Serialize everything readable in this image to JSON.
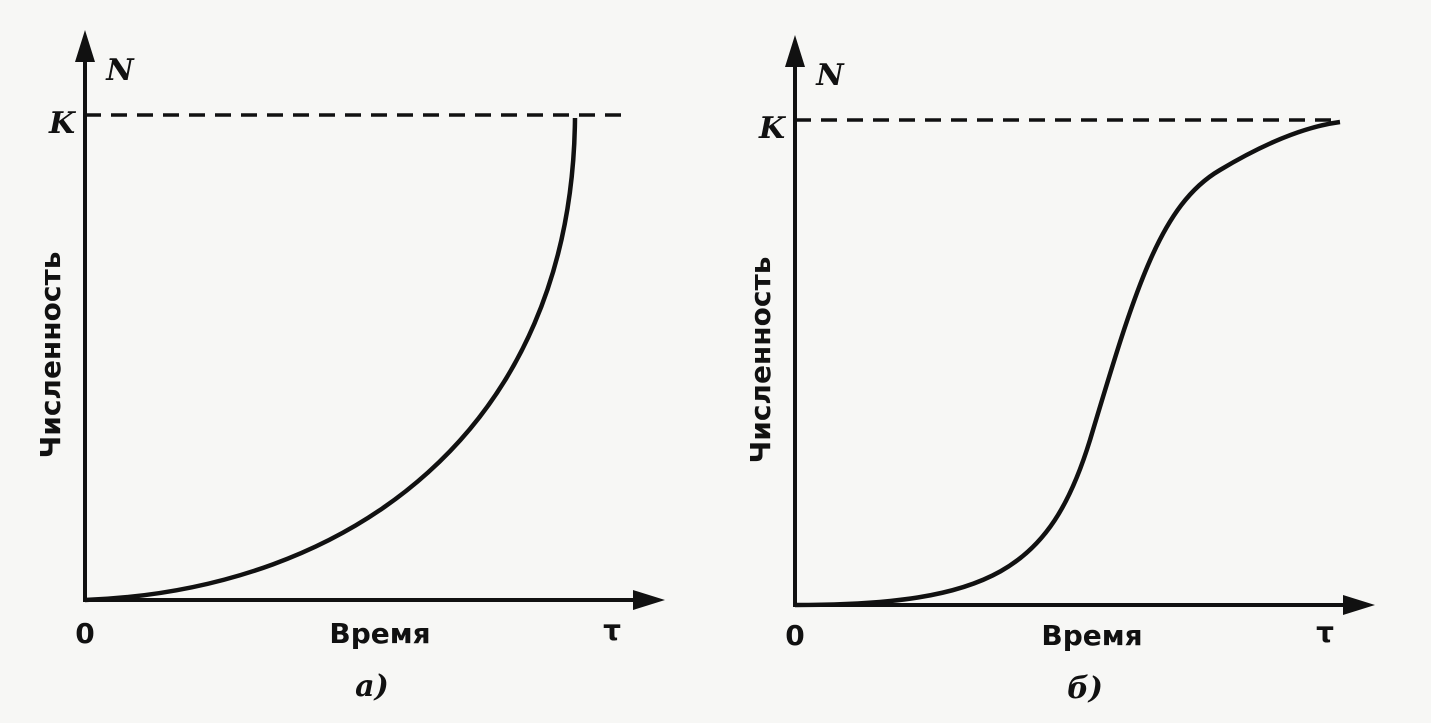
{
  "panels": [
    {
      "y_axis_symbol": "N",
      "capacity_label": "K",
      "y_axis_title": "Численность",
      "origin": "0",
      "x_axis_title": "Время",
      "x_axis_symbol": "τ",
      "caption": "а)"
    },
    {
      "y_axis_symbol": "N",
      "capacity_label": "K",
      "y_axis_title": "Численность",
      "origin": "0",
      "x_axis_title": "Время",
      "x_axis_symbol": "τ",
      "caption": "б)"
    }
  ]
}
